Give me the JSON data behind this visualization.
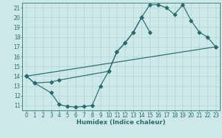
{
  "xlabel": "Humidex (Indice chaleur)",
  "bg_color": "#cce8e8",
  "grid_color": "#aad4d4",
  "line_color": "#2a6b6b",
  "xlim": [
    -0.5,
    23.5
  ],
  "ylim": [
    10.5,
    21.5
  ],
  "xticks": [
    0,
    1,
    2,
    3,
    4,
    5,
    6,
    7,
    8,
    9,
    10,
    11,
    12,
    13,
    14,
    15,
    16,
    17,
    18,
    19,
    20,
    21,
    22,
    23
  ],
  "yticks": [
    11,
    12,
    13,
    14,
    15,
    16,
    17,
    18,
    19,
    20,
    21
  ],
  "curve1_x": [
    0,
    1,
    3,
    4,
    10,
    11,
    12,
    13,
    14,
    15,
    16,
    17,
    18,
    19,
    20,
    21,
    22,
    23
  ],
  "curve1_y": [
    14.0,
    13.3,
    13.4,
    13.6,
    14.5,
    16.5,
    17.4,
    18.5,
    20.0,
    21.3,
    21.3,
    21.0,
    20.3,
    21.3,
    19.7,
    18.5,
    18.0,
    17.0
  ],
  "curve2_x": [
    0,
    23
  ],
  "curve2_y": [
    14.0,
    17.0
  ],
  "curve3_x": [
    0,
    1,
    3,
    4,
    5,
    6,
    7,
    8,
    9,
    10,
    11,
    12,
    13,
    14,
    15
  ],
  "curve3_y": [
    14.0,
    13.3,
    12.3,
    11.1,
    10.9,
    10.85,
    10.9,
    11.0,
    13.0,
    14.5,
    16.5,
    17.4,
    18.5,
    20.0,
    18.5
  ],
  "tick_fontsize": 5.5,
  "xlabel_fontsize": 6.5,
  "marker_size": 2.5,
  "line_width": 0.9
}
